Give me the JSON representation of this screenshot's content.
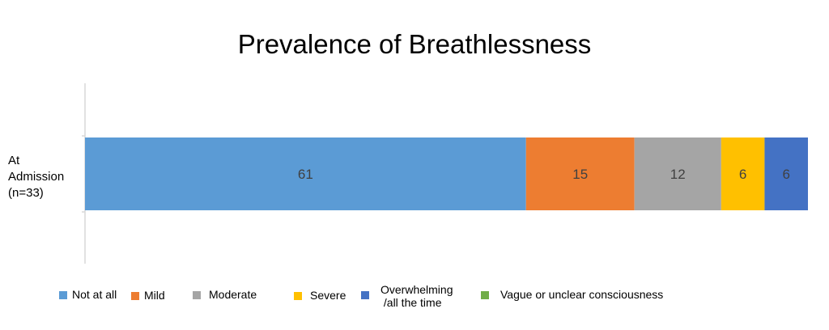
{
  "chart_data": {
    "type": "bar",
    "orientation": "horizontal",
    "stacked": true,
    "title": "Prevalence of Breathlessness",
    "categories": [
      "At Admission (n=33)"
    ],
    "category_label": "At\nAdmission\n(n=33)",
    "series": [
      {
        "name": "Not at all",
        "legend_label": "Not at all",
        "values": [
          61
        ],
        "color": "#5B9BD5"
      },
      {
        "name": "Mild",
        "legend_label": "Mild",
        "values": [
          15
        ],
        "color": "#ED7D31"
      },
      {
        "name": "Moderate",
        "legend_label": "Moderate",
        "values": [
          12
        ],
        "color": "#A5A5A5"
      },
      {
        "name": "Severe",
        "legend_label": "Severe",
        "values": [
          6
        ],
        "color": "#FFC000"
      },
      {
        "name": "Overwhelming /all the time",
        "legend_label": "Overwhelming\n /all the time",
        "values": [
          6
        ],
        "color": "#4472C4"
      },
      {
        "name": "Vague or unclear consciousness",
        "legend_label": "Vague or unclear consciousness",
        "values": [
          0
        ],
        "color": "#70AD47"
      }
    ],
    "grid": false,
    "legend_position": "bottom"
  }
}
